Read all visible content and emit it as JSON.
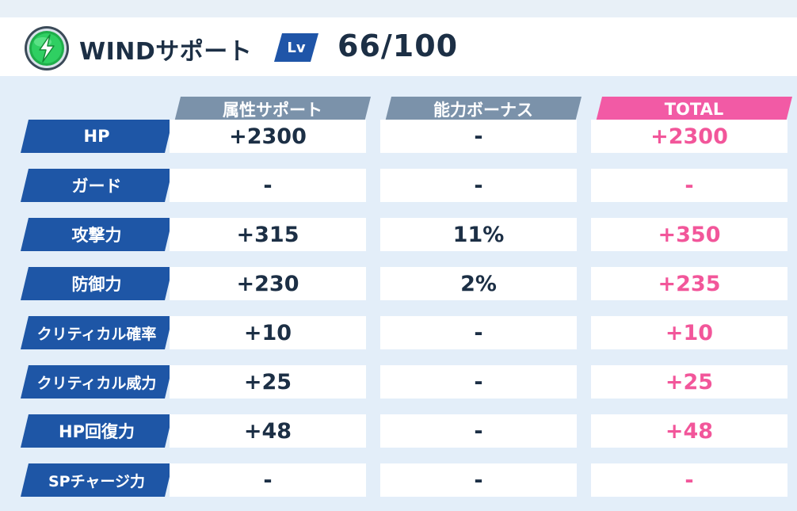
{
  "header": {
    "element_icon": "wind-element-icon",
    "title": "WINDサポート",
    "lv_label": "Lv",
    "lv_value": "66/100"
  },
  "colors": {
    "label_bg": "#1e56a6",
    "col_head_gray": "#7b92aa",
    "col_head_total": "#f25aa5",
    "total_text": "#f2569a",
    "text_dark": "#1c2f45"
  },
  "table": {
    "columns": [
      "属性サポート",
      "能力ボーナス",
      "TOTAL"
    ],
    "rows": [
      {
        "label": "HP",
        "attr": "+2300",
        "bonus": "-",
        "total": "+2300"
      },
      {
        "label": "ガード",
        "attr": "-",
        "bonus": "-",
        "total": "-"
      },
      {
        "label": "攻撃力",
        "attr": "+315",
        "bonus": "11%",
        "total": "+350"
      },
      {
        "label": "防御力",
        "attr": "+230",
        "bonus": "2%",
        "total": "+235"
      },
      {
        "label": "クリティカル確率",
        "attr": "+10",
        "bonus": "-",
        "total": "+10"
      },
      {
        "label": "クリティカル威力",
        "attr": "+25",
        "bonus": "-",
        "total": "+25"
      },
      {
        "label": "HP回復力",
        "attr": "+48",
        "bonus": "-",
        "total": "+48"
      },
      {
        "label": "SPチャージ力",
        "attr": "-",
        "bonus": "-",
        "total": "-"
      }
    ]
  }
}
